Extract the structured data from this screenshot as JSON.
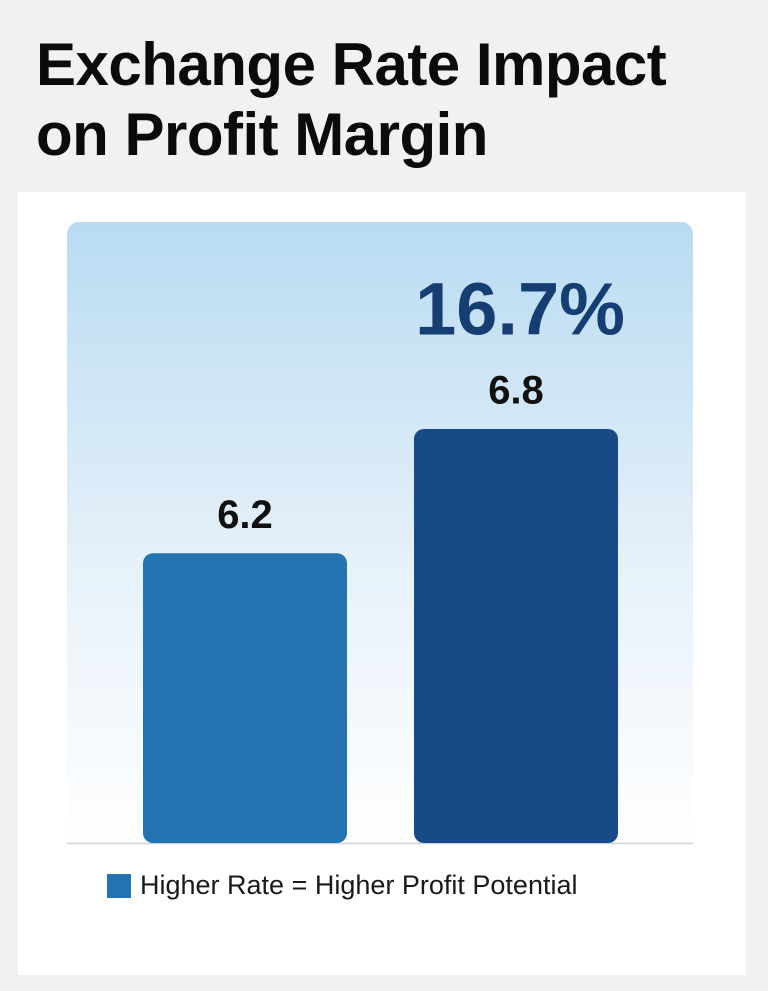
{
  "chart_data": {
    "type": "bar",
    "title": "Exchange Rate Impact on Profit Margin",
    "annotation": "16.7%",
    "categories": [
      null,
      null
    ],
    "series": [
      {
        "name": "Higher Rate = Higher Profit Potential",
        "color": "#2474b1",
        "values": [
          6.2,
          6.8
        ],
        "colors": [
          "#2474b1",
          "#174a86"
        ]
      }
    ],
    "ylim": [
      4.8,
      7.8
    ],
    "grid": false
  }
}
